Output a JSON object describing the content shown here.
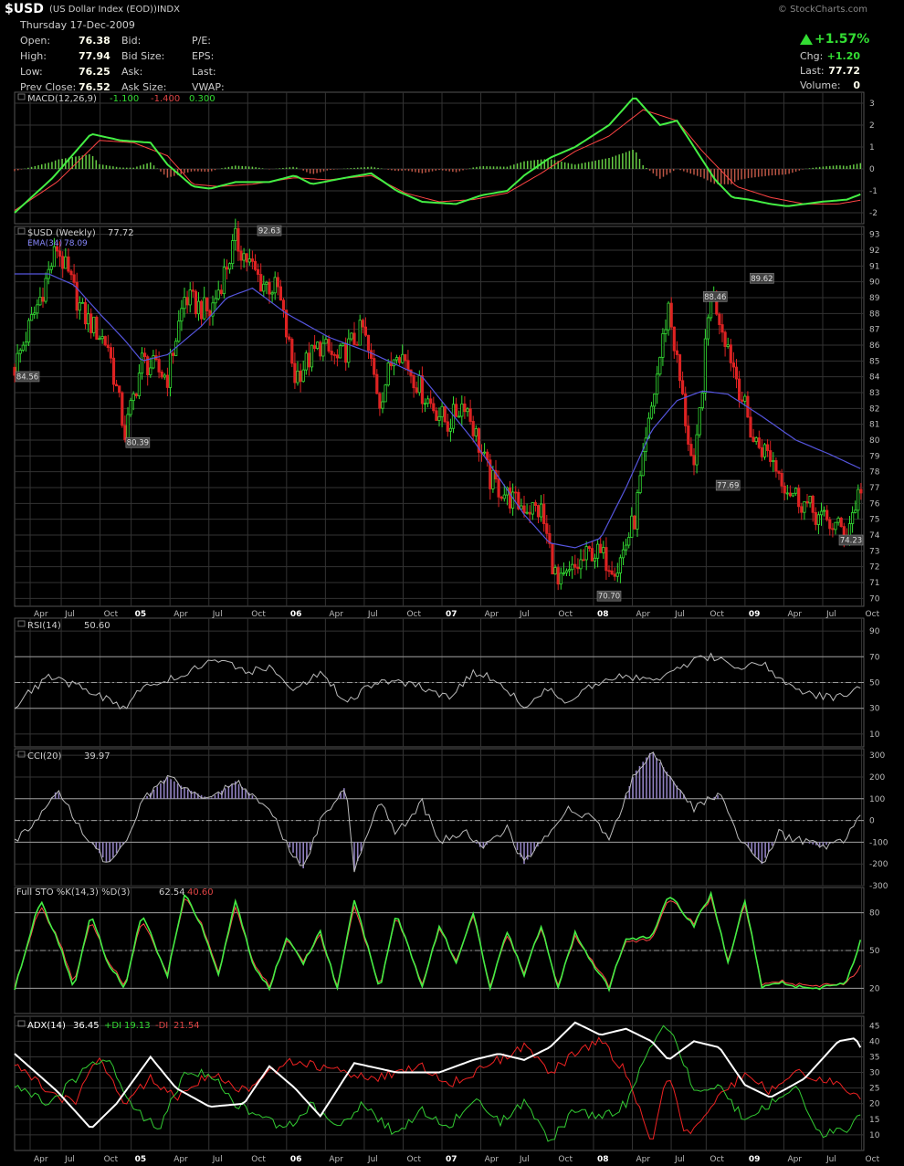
{
  "header": {
    "symbol": "$USD",
    "name": "(US Dollar Index (EOD))",
    "exchange": "INDX",
    "brand": "© StockCharts.com",
    "date": "Thursday 17-Dec-2009",
    "open_label": "Open:",
    "open": "76.38",
    "high_label": "High:",
    "high": "77.94",
    "low_label": "Low:",
    "low": "76.25",
    "prev_label": "Prev Close:",
    "prev": "76.52",
    "bid_label": "Bid:",
    "bidsize_label": "Bid Size:",
    "ask_label": "Ask:",
    "asksize_label": "Ask Size:",
    "pe_label": "P/E:",
    "eps_label": "EPS:",
    "last_label": "Last:",
    "vwap_label": "VWAP:",
    "pct": "+1.57%",
    "chg_label": "Chg:",
    "chg": "+1.20",
    "last2_label": "Last:",
    "last2": "77.72",
    "vol_label": "Volume:",
    "vol": "0"
  },
  "colors": {
    "green": "#33dd33",
    "red": "#dd2222",
    "blue": "#5555dd",
    "grid": "#333333",
    "purple": "#9080c0"
  },
  "chart_data": [
    {
      "type": "line",
      "panel": "MACD",
      "legend": {
        "name": "MACD(12,26,9)",
        "v1": "-1.100",
        "v2": "-1.400",
        "v3": "0.300"
      },
      "ylim": [
        -2.5,
        3.5
      ],
      "yticks": [
        "3",
        "2",
        "1",
        "0",
        "-1",
        "-2"
      ],
      "series": [
        {
          "name": "MACD",
          "x": [
            0,
            9,
            18,
            25,
            32,
            36,
            42,
            46,
            52,
            60,
            66,
            70,
            78,
            84,
            90,
            96,
            104,
            110,
            116,
            120,
            126,
            132,
            140,
            146,
            152,
            156,
            160,
            165,
            169,
            173,
            178,
            182,
            186,
            190,
            196,
            200
          ],
          "values": [
            -2,
            -0.4,
            1.6,
            1.3,
            1.2,
            0.2,
            -0.8,
            -0.9,
            -0.6,
            -0.6,
            -0.3,
            -0.7,
            -0.4,
            -0.2,
            -1.0,
            -1.5,
            -1.6,
            -1.2,
            -1.0,
            -0.3,
            0.5,
            1.0,
            2.0,
            3.3,
            2.0,
            2.2,
            1.0,
            -0.5,
            -1.3,
            -1.4,
            -1.6,
            -1.7,
            -1.6,
            -1.5,
            -1.4,
            -1.1
          ]
        },
        {
          "name": "Signal",
          "x": [
            0,
            10,
            20,
            28,
            36,
            42,
            48,
            56,
            66,
            74,
            84,
            92,
            100,
            108,
            116,
            124,
            132,
            140,
            148,
            156,
            162,
            170,
            178,
            186,
            194,
            200
          ],
          "values": [
            -1.9,
            -0.6,
            1.3,
            1.2,
            0.6,
            -0.7,
            -0.8,
            -0.7,
            -0.4,
            -0.5,
            -0.3,
            -1.1,
            -1.5,
            -1.4,
            -1.1,
            -0.2,
            0.8,
            1.5,
            2.7,
            2.2,
            0.8,
            -0.8,
            -1.3,
            -1.6,
            -1.6,
            -1.4
          ]
        }
      ]
    },
    {
      "type": "candlestick",
      "panel": "Price",
      "legend": {
        "name": "$USD (Weekly)",
        "value": "77.72",
        "ema": "EMA(34)",
        "ema_value": "78.09"
      },
      "ylim": [
        69.5,
        93.5
      ],
      "yticks": [
        "93",
        "92",
        "91",
        "90",
        "89",
        "88",
        "87",
        "86",
        "85",
        "84",
        "83",
        "82",
        "81",
        "80",
        "79",
        "78",
        "77",
        "76",
        "75",
        "74",
        "73",
        "72",
        "71",
        "70"
      ],
      "xticks": [
        "Apr",
        "Jul",
        "Oct",
        "05",
        "Apr",
        "Jul",
        "Oct",
        "06",
        "Apr",
        "Jul",
        "Oct",
        "07",
        "Apr",
        "Jul",
        "Oct",
        "08",
        "Apr",
        "Jul",
        "Oct",
        "09",
        "Apr",
        "Jul",
        "Oct"
      ],
      "price": {
        "x": [
          0,
          6,
          10,
          16,
          22,
          26,
          30,
          36,
          40,
          46,
          52,
          58,
          62,
          66,
          72,
          76,
          82,
          86,
          90,
          96,
          102,
          106,
          112,
          118,
          124,
          128,
          136,
          142,
          146,
          150,
          154,
          160,
          164,
          168,
          174,
          178,
          182,
          186,
          190,
          196,
          200
        ],
        "values": [
          84.6,
          89,
          92.2,
          88,
          86,
          80.4,
          85,
          84,
          89,
          88,
          92.6,
          90,
          89.5,
          84,
          86,
          85,
          87,
          82.5,
          86,
          83,
          81,
          82.5,
          77.5,
          76,
          75.5,
          70.7,
          73,
          72,
          75,
          82,
          88.5,
          77.7,
          89.6,
          86,
          80,
          79,
          77,
          76,
          75,
          74.2,
          77.7
        ]
      },
      "ema": {
        "x": [
          0,
          8,
          14,
          20,
          26,
          30,
          36,
          44,
          50,
          56,
          64,
          74,
          84,
          96,
          108,
          120,
          126,
          132,
          138,
          144,
          150,
          156,
          162,
          168,
          176,
          184,
          192,
          200
        ],
        "values": [
          90.5,
          90.5,
          89.8,
          88,
          86.3,
          85,
          85.4,
          87.2,
          89,
          89.6,
          88,
          86.5,
          85.5,
          84,
          80,
          75.3,
          73.5,
          73.2,
          73.8,
          77,
          80.6,
          82.5,
          83.1,
          82.9,
          81.5,
          80,
          79.1,
          78.1
        ]
      },
      "annotations": [
        {
          "label": "84.56",
          "x": 0,
          "y": 84.56
        },
        {
          "label": "80.39",
          "x": 29,
          "y": 80.39
        },
        {
          "label": "92.63",
          "x": 60,
          "y": 92.63
        },
        {
          "label": "70.70",
          "x": 140,
          "y": 70.7
        },
        {
          "label": "88.46",
          "x": 165,
          "y": 88.46
        },
        {
          "label": "77.69",
          "x": 168,
          "y": 77.69
        },
        {
          "label": "89.62",
          "x": 176,
          "y": 89.62
        },
        {
          "label": "74.23",
          "x": 199,
          "y": 74.23
        }
      ]
    },
    {
      "type": "line",
      "panel": "RSI",
      "legend": {
        "name": "RSI(14)",
        "value": "50.60"
      },
      "ylim": [
        0,
        100
      ],
      "yticks": [
        "90",
        "70",
        "50",
        "30",
        "10"
      ],
      "series": [
        {
          "name": "RSI",
          "x": [
            0,
            8,
            14,
            20,
            26,
            30,
            36,
            42,
            48,
            54,
            60,
            66,
            72,
            78,
            84,
            90,
            96,
            102,
            108,
            114,
            120,
            126,
            130,
            136,
            142,
            150,
            156,
            160,
            164,
            170,
            176,
            182,
            188,
            194,
            200
          ],
          "values": [
            32,
            55,
            48,
            40,
            30,
            46,
            52,
            60,
            68,
            58,
            62,
            45,
            58,
            35,
            48,
            52,
            46,
            38,
            58,
            52,
            30,
            46,
            34,
            48,
            56,
            52,
            60,
            68,
            70,
            62,
            66,
            48,
            40,
            38,
            50
          ]
        }
      ]
    },
    {
      "type": "line",
      "panel": "CCI",
      "legend": {
        "name": "CCI(20)",
        "value": "39.97"
      },
      "ylim": [
        -300,
        330
      ],
      "yticks": [
        "300",
        "200",
        "100",
        "0",
        "-100",
        "-200",
        "-300"
      ],
      "series": [
        {
          "name": "CCI",
          "x": [
            0,
            6,
            10,
            16,
            22,
            26,
            30,
            36,
            40,
            46,
            52,
            60,
            64,
            68,
            72,
            78,
            80,
            86,
            90,
            96,
            100,
            106,
            110,
            116,
            120,
            126,
            130,
            136,
            140,
            146,
            150,
            156,
            160,
            166,
            170,
            176,
            180,
            186,
            190,
            196,
            200
          ],
          "values": [
            -100,
            30,
            140,
            -50,
            -200,
            -100,
            90,
            200,
            150,
            100,
            180,
            50,
            -100,
            -220,
            -10,
            160,
            -230,
            100,
            -60,
            80,
            -100,
            -50,
            -130,
            -40,
            -200,
            -50,
            50,
            20,
            -90,
            220,
            320,
            160,
            60,
            120,
            -60,
            -200,
            -60,
            -100,
            -120,
            -80,
            40
          ]
        }
      ]
    },
    {
      "type": "line",
      "panel": "STO",
      "legend": {
        "name": "Full STO %K(14,3) %D(3)",
        "k": "62.54",
        "d": "40.60"
      },
      "ylim": [
        0,
        100
      ],
      "yticks": [
        "80",
        "50",
        "20"
      ],
      "series": [
        {
          "name": "%K",
          "x": [
            0,
            6,
            10,
            14,
            18,
            22,
            26,
            30,
            36,
            40,
            44,
            48,
            52,
            56,
            60,
            64,
            68,
            72,
            76,
            80,
            86,
            90,
            96,
            100,
            104,
            108,
            112,
            116,
            120,
            124,
            128,
            132,
            136,
            140,
            144,
            150,
            154,
            160,
            164,
            168,
            172,
            176,
            180,
            186,
            190,
            196,
            200
          ],
          "values": [
            20,
            90,
            60,
            20,
            80,
            40,
            20,
            80,
            30,
            95,
            70,
            30,
            90,
            40,
            20,
            60,
            40,
            65,
            20,
            90,
            20,
            80,
            20,
            70,
            40,
            80,
            20,
            65,
            30,
            70,
            20,
            65,
            40,
            20,
            60,
            60,
            95,
            70,
            95,
            40,
            90,
            20,
            25,
            20,
            20,
            25,
            65
          ]
        },
        {
          "name": "%D",
          "x": [
            0,
            6,
            10,
            14,
            18,
            22,
            26,
            30,
            36,
            40,
            44,
            48,
            52,
            56,
            60,
            64,
            68,
            72,
            76,
            80,
            86,
            90,
            96,
            100,
            104,
            108,
            112,
            116,
            120,
            124,
            128,
            132,
            136,
            140,
            144,
            150,
            154,
            160,
            164,
            168,
            172,
            176,
            180,
            186,
            190,
            196,
            200
          ],
          "values": [
            22,
            85,
            62,
            24,
            75,
            42,
            22,
            75,
            32,
            92,
            72,
            32,
            85,
            42,
            22,
            58,
            42,
            62,
            22,
            85,
            22,
            78,
            22,
            68,
            42,
            78,
            22,
            62,
            32,
            68,
            22,
            62,
            42,
            22,
            58,
            58,
            92,
            72,
            92,
            42,
            87,
            22,
            26,
            22,
            22,
            24,
            40
          ]
        }
      ]
    },
    {
      "type": "line",
      "panel": "ADX",
      "legend": {
        "name": "ADX(14)",
        "adx": "36.45",
        "pdi_label": "+DI",
        "pdi": "19.13",
        "mdi_label": "-DI",
        "mdi": "21.54"
      },
      "ylim": [
        5,
        48
      ],
      "yticks": [
        "45",
        "40",
        "35",
        "30",
        "25",
        "20",
        "15",
        "10"
      ],
      "series": [
        {
          "name": "ADX",
          "x": [
            0,
            10,
            18,
            24,
            32,
            38,
            46,
            54,
            60,
            66,
            72,
            80,
            90,
            100,
            108,
            114,
            120,
            126,
            132,
            138,
            144,
            150,
            154,
            160,
            166,
            172,
            178,
            186,
            194,
            198,
            200
          ],
          "values": [
            36,
            24,
            12,
            20,
            35,
            25,
            19,
            20,
            32,
            25,
            16,
            33,
            30,
            30,
            34,
            36,
            34,
            38,
            46,
            42,
            44,
            40,
            34,
            40,
            38,
            26,
            22,
            28,
            40,
            41,
            36
          ]
        },
        {
          "name": "+DI",
          "x": [
            0,
            8,
            16,
            22,
            28,
            34,
            40,
            46,
            52,
            58,
            64,
            70,
            76,
            82,
            90,
            96,
            102,
            108,
            114,
            120,
            126,
            132,
            138,
            144,
            150,
            154,
            160,
            166,
            172,
            178,
            184,
            190,
            196,
            200
          ],
          "values": [
            25,
            20,
            30,
            35,
            18,
            12,
            30,
            30,
            20,
            16,
            12,
            20,
            12,
            20,
            10,
            18,
            12,
            22,
            14,
            20,
            8,
            18,
            15,
            20,
            40,
            45,
            25,
            25,
            15,
            20,
            25,
            10,
            12,
            19
          ]
        },
        {
          "name": "-DI",
          "x": [
            0,
            8,
            14,
            20,
            26,
            32,
            38,
            46,
            54,
            60,
            66,
            72,
            78,
            84,
            90,
            96,
            102,
            108,
            114,
            120,
            126,
            132,
            138,
            144,
            150,
            154,
            158,
            166,
            172,
            178,
            184,
            190,
            196,
            200
          ],
          "values": [
            32,
            24,
            20,
            35,
            20,
            28,
            22,
            30,
            24,
            30,
            34,
            32,
            30,
            28,
            30,
            32,
            26,
            30,
            34,
            38,
            30,
            36,
            40,
            30,
            8,
            30,
            10,
            22,
            30,
            24,
            30,
            28,
            25,
            22
          ]
        }
      ]
    }
  ]
}
